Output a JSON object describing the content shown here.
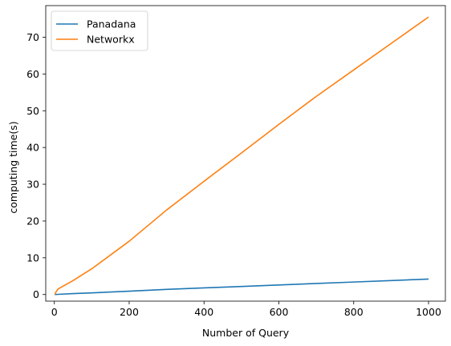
{
  "chart_data": {
    "type": "line",
    "xlabel": "Number of Query",
    "ylabel": "computing time(s)",
    "xlim": [
      -23,
      1045
    ],
    "ylim": [
      -1.8,
      78.6
    ],
    "xticks": [
      0,
      200,
      400,
      600,
      800,
      1000
    ],
    "yticks": [
      0,
      10,
      20,
      30,
      40,
      50,
      60,
      70
    ],
    "grid": false,
    "legend_position": "top-left",
    "series": [
      {
        "name": "Panadana",
        "color": "#1f77b4",
        "x": [
          1,
          10,
          50,
          100,
          200,
          300,
          400,
          500,
          600,
          700,
          800,
          900,
          1000
        ],
        "y": [
          0.0,
          0.05,
          0.25,
          0.45,
          0.9,
          1.4,
          1.8,
          2.2,
          2.6,
          3.0,
          3.4,
          3.8,
          4.2
        ]
      },
      {
        "name": "Networkx",
        "color": "#ff7f0e",
        "x": [
          1,
          5,
          10,
          50,
          100,
          200,
          300,
          400,
          500,
          600,
          700,
          800,
          900,
          1000
        ],
        "y": [
          0.0,
          0.8,
          1.5,
          3.8,
          7.0,
          14.5,
          23.0,
          30.8,
          38.5,
          46.3,
          53.9,
          61.1,
          68.3,
          75.5
        ]
      }
    ]
  }
}
